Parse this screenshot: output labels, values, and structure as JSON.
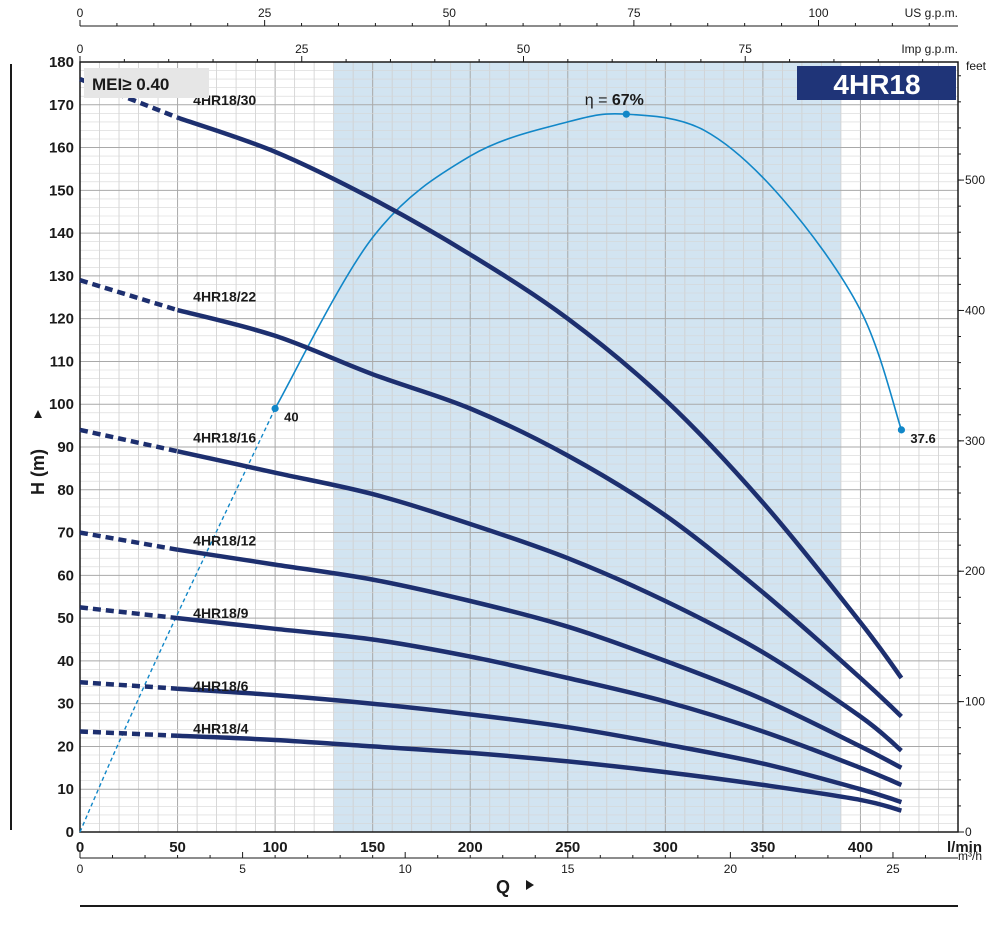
{
  "chart_data": {
    "type": "line",
    "model": "4HR18",
    "mei_label": "MEI≥ 0.40",
    "efficiency": {
      "peak_label_prefix": "η = ",
      "peak_label_value": "67%",
      "curve": {
        "x": [
          0,
          20,
          50,
          100,
          150,
          200,
          250,
          280,
          320,
          360,
          400,
          421
        ],
        "y": [
          0,
          21,
          51,
          99,
          139,
          158,
          166,
          167.8,
          164,
          148,
          122,
          94
        ]
      },
      "markers": [
        {
          "x": 100,
          "y": 99,
          "label": "40"
        },
        {
          "x": 280,
          "y": 167.8,
          "label": ""
        },
        {
          "x": 421,
          "y": 94,
          "label": "37.6"
        }
      ],
      "dashed_until_x": 100,
      "color": "#1187c8"
    },
    "curve_color": "#1d2f6f",
    "series": [
      {
        "name": "4HR18/30",
        "x": [
          0,
          50,
          100,
          150,
          200,
          250,
          300,
          350,
          400,
          421
        ],
        "y": [
          176,
          167,
          159,
          148,
          135,
          120,
          101,
          77,
          49,
          36
        ],
        "label_at": [
          58,
          170
        ]
      },
      {
        "name": "4HR18/22",
        "x": [
          0,
          50,
          100,
          150,
          200,
          250,
          300,
          350,
          400,
          421
        ],
        "y": [
          129,
          122,
          116,
          107,
          99,
          88,
          74,
          56,
          36,
          27
        ],
        "label_at": [
          58,
          124
        ]
      },
      {
        "name": "4HR18/16",
        "x": [
          0,
          50,
          100,
          150,
          200,
          250,
          300,
          350,
          400,
          421
        ],
        "y": [
          94,
          89,
          84,
          79,
          72,
          64,
          54,
          42,
          27,
          19
        ],
        "label_at": [
          58,
          91
        ]
      },
      {
        "name": "4HR18/12",
        "x": [
          0,
          50,
          100,
          150,
          200,
          250,
          300,
          350,
          400,
          421
        ],
        "y": [
          70,
          66,
          62.5,
          59,
          54,
          48,
          40,
          31,
          20,
          15
        ],
        "label_at": [
          58,
          67
        ]
      },
      {
        "name": "4HR18/9",
        "x": [
          0,
          50,
          100,
          150,
          200,
          250,
          300,
          350,
          400,
          421
        ],
        "y": [
          52.5,
          50,
          47.5,
          45,
          41,
          36,
          30.5,
          23.5,
          15,
          11
        ],
        "label_at": [
          58,
          50
        ]
      },
      {
        "name": "4HR18/6",
        "x": [
          0,
          50,
          100,
          150,
          200,
          250,
          300,
          350,
          400,
          421
        ],
        "y": [
          35,
          33.5,
          32,
          30,
          27.5,
          24.5,
          20.5,
          16,
          10,
          7
        ],
        "label_at": [
          58,
          33
        ]
      },
      {
        "name": "4HR18/4",
        "x": [
          0,
          50,
          100,
          150,
          200,
          250,
          300,
          350,
          400,
          421
        ],
        "y": [
          23.5,
          22.5,
          21.5,
          20,
          18.5,
          16.5,
          14,
          11,
          7.5,
          5
        ],
        "label_at": [
          58,
          23
        ]
      }
    ],
    "dashed_until_x": 50,
    "recommended_range": {
      "x": [
        130,
        390
      ],
      "color": "#d2e4f1"
    },
    "axes": {
      "x_main": {
        "label": "Q",
        "unit": "l/min",
        "range": [
          0,
          450
        ],
        "ticks": [
          0,
          50,
          100,
          150,
          200,
          250,
          300,
          350,
          400
        ]
      },
      "x_m3h": {
        "unit": "m³/h",
        "factor": 16.6667,
        "ticks": [
          0,
          5,
          10,
          15,
          20,
          25
        ]
      },
      "x_usgpm": {
        "unit": "US g.p.m.",
        "factor": 3.785,
        "ticks": [
          0,
          25,
          50,
          75,
          100
        ]
      },
      "x_impgpm": {
        "unit": "Imp g.p.m.",
        "factor": 4.546,
        "ticks": [
          0,
          25,
          50,
          75
        ]
      },
      "y_left": {
        "label": "H (m)",
        "range": [
          0,
          180
        ],
        "ticks": [
          0,
          10,
          20,
          30,
          40,
          50,
          60,
          70,
          80,
          90,
          100,
          110,
          120,
          130,
          140,
          150,
          160,
          170,
          180
        ]
      },
      "y_right": {
        "unit": "feet",
        "factor": 0.3048,
        "ticks": [
          0,
          100,
          200,
          300,
          400,
          500
        ]
      }
    }
  }
}
